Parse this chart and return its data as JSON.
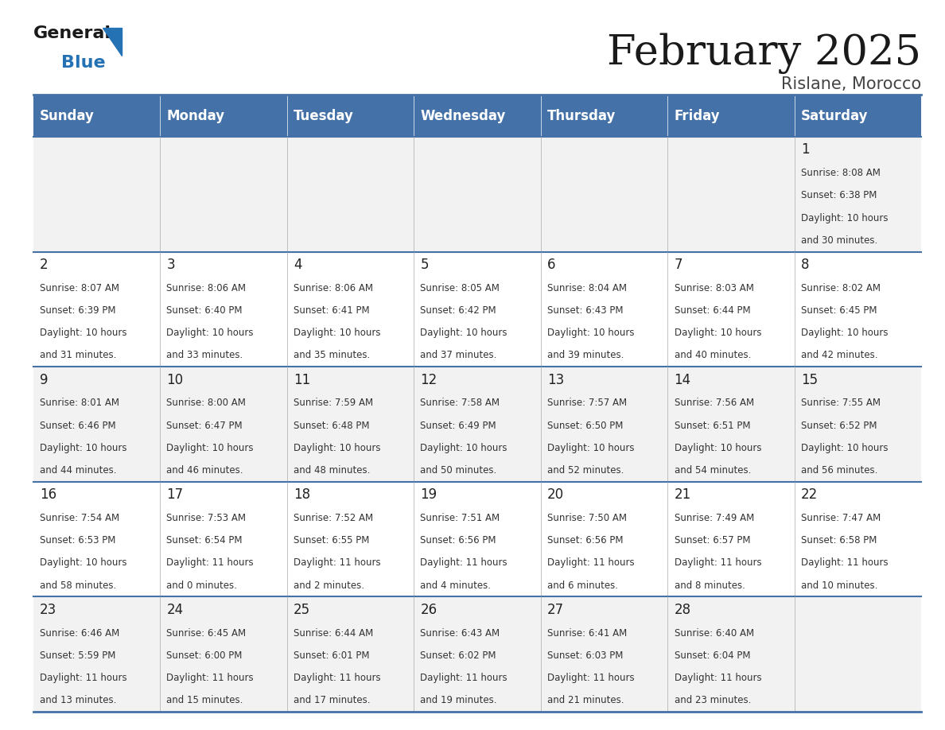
{
  "title": "February 2025",
  "subtitle": "Rislane, Morocco",
  "days_of_week": [
    "Sunday",
    "Monday",
    "Tuesday",
    "Wednesday",
    "Thursday",
    "Friday",
    "Saturday"
  ],
  "header_bg": "#4472A8",
  "header_text": "#FFFFFF",
  "row_bg_light": "#F2F2F2",
  "row_bg_white": "#FFFFFF",
  "border_color": "#4472A8",
  "cell_border_color": "#AAAAAA",
  "day_num_color": "#222222",
  "info_color": "#333333",
  "calendar_data": [
    [
      null,
      null,
      null,
      null,
      null,
      null,
      {
        "day": "1",
        "sunrise": "8:08 AM",
        "sunset": "6:38 PM",
        "daylight_h": "10 hours",
        "daylight_m": "and 30 minutes."
      }
    ],
    [
      {
        "day": "2",
        "sunrise": "8:07 AM",
        "sunset": "6:39 PM",
        "daylight_h": "10 hours",
        "daylight_m": "and 31 minutes."
      },
      {
        "day": "3",
        "sunrise": "8:06 AM",
        "sunset": "6:40 PM",
        "daylight_h": "10 hours",
        "daylight_m": "and 33 minutes."
      },
      {
        "day": "4",
        "sunrise": "8:06 AM",
        "sunset": "6:41 PM",
        "daylight_h": "10 hours",
        "daylight_m": "and 35 minutes."
      },
      {
        "day": "5",
        "sunrise": "8:05 AM",
        "sunset": "6:42 PM",
        "daylight_h": "10 hours",
        "daylight_m": "and 37 minutes."
      },
      {
        "day": "6",
        "sunrise": "8:04 AM",
        "sunset": "6:43 PM",
        "daylight_h": "10 hours",
        "daylight_m": "and 39 minutes."
      },
      {
        "day": "7",
        "sunrise": "8:03 AM",
        "sunset": "6:44 PM",
        "daylight_h": "10 hours",
        "daylight_m": "and 40 minutes."
      },
      {
        "day": "8",
        "sunrise": "8:02 AM",
        "sunset": "6:45 PM",
        "daylight_h": "10 hours",
        "daylight_m": "and 42 minutes."
      }
    ],
    [
      {
        "day": "9",
        "sunrise": "8:01 AM",
        "sunset": "6:46 PM",
        "daylight_h": "10 hours",
        "daylight_m": "and 44 minutes."
      },
      {
        "day": "10",
        "sunrise": "8:00 AM",
        "sunset": "6:47 PM",
        "daylight_h": "10 hours",
        "daylight_m": "and 46 minutes."
      },
      {
        "day": "11",
        "sunrise": "7:59 AM",
        "sunset": "6:48 PM",
        "daylight_h": "10 hours",
        "daylight_m": "and 48 minutes."
      },
      {
        "day": "12",
        "sunrise": "7:58 AM",
        "sunset": "6:49 PM",
        "daylight_h": "10 hours",
        "daylight_m": "and 50 minutes."
      },
      {
        "day": "13",
        "sunrise": "7:57 AM",
        "sunset": "6:50 PM",
        "daylight_h": "10 hours",
        "daylight_m": "and 52 minutes."
      },
      {
        "day": "14",
        "sunrise": "7:56 AM",
        "sunset": "6:51 PM",
        "daylight_h": "10 hours",
        "daylight_m": "and 54 minutes."
      },
      {
        "day": "15",
        "sunrise": "7:55 AM",
        "sunset": "6:52 PM",
        "daylight_h": "10 hours",
        "daylight_m": "and 56 minutes."
      }
    ],
    [
      {
        "day": "16",
        "sunrise": "7:54 AM",
        "sunset": "6:53 PM",
        "daylight_h": "10 hours",
        "daylight_m": "and 58 minutes."
      },
      {
        "day": "17",
        "sunrise": "7:53 AM",
        "sunset": "6:54 PM",
        "daylight_h": "11 hours",
        "daylight_m": "and 0 minutes."
      },
      {
        "day": "18",
        "sunrise": "7:52 AM",
        "sunset": "6:55 PM",
        "daylight_h": "11 hours",
        "daylight_m": "and 2 minutes."
      },
      {
        "day": "19",
        "sunrise": "7:51 AM",
        "sunset": "6:56 PM",
        "daylight_h": "11 hours",
        "daylight_m": "and 4 minutes."
      },
      {
        "day": "20",
        "sunrise": "7:50 AM",
        "sunset": "6:56 PM",
        "daylight_h": "11 hours",
        "daylight_m": "and 6 minutes."
      },
      {
        "day": "21",
        "sunrise": "7:49 AM",
        "sunset": "6:57 PM",
        "daylight_h": "11 hours",
        "daylight_m": "and 8 minutes."
      },
      {
        "day": "22",
        "sunrise": "7:47 AM",
        "sunset": "6:58 PM",
        "daylight_h": "11 hours",
        "daylight_m": "and 10 minutes."
      }
    ],
    [
      {
        "day": "23",
        "sunrise": "6:46 AM",
        "sunset": "5:59 PM",
        "daylight_h": "11 hours",
        "daylight_m": "and 13 minutes."
      },
      {
        "day": "24",
        "sunrise": "6:45 AM",
        "sunset": "6:00 PM",
        "daylight_h": "11 hours",
        "daylight_m": "and 15 minutes."
      },
      {
        "day": "25",
        "sunrise": "6:44 AM",
        "sunset": "6:01 PM",
        "daylight_h": "11 hours",
        "daylight_m": "and 17 minutes."
      },
      {
        "day": "26",
        "sunrise": "6:43 AM",
        "sunset": "6:02 PM",
        "daylight_h": "11 hours",
        "daylight_m": "and 19 minutes."
      },
      {
        "day": "27",
        "sunrise": "6:41 AM",
        "sunset": "6:03 PM",
        "daylight_h": "11 hours",
        "daylight_m": "and 21 minutes."
      },
      {
        "day": "28",
        "sunrise": "6:40 AM",
        "sunset": "6:04 PM",
        "daylight_h": "11 hours",
        "daylight_m": "and 23 minutes."
      },
      null
    ]
  ],
  "title_fontsize": 38,
  "subtitle_fontsize": 15,
  "header_fontsize": 12,
  "day_num_fontsize": 12,
  "info_fontsize": 8.5
}
